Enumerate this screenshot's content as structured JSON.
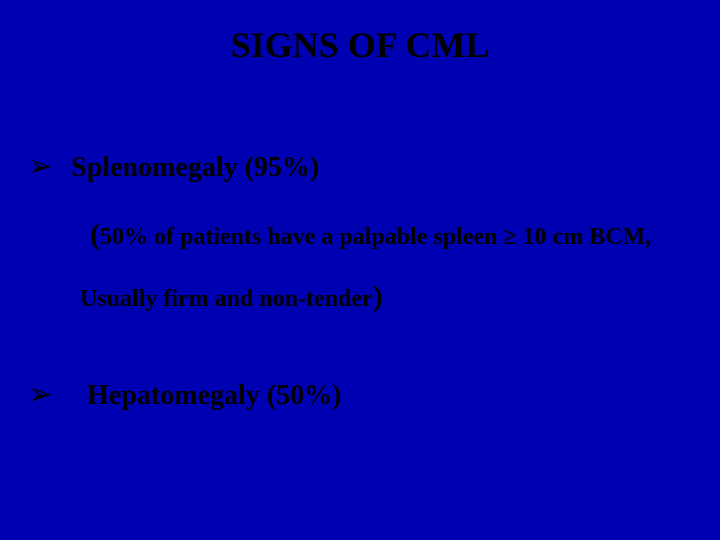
{
  "slide": {
    "background_color": "#0000b3",
    "text_color": "#000000",
    "font_family": "Times New Roman",
    "title": {
      "text": "SIGNS OF CML",
      "font_size": 36,
      "font_weight": "bold"
    },
    "bullets": [
      {
        "marker": "➢",
        "text": "Splenomegaly (95%)",
        "font_size": 28,
        "sublines": [
          "50% of  patients have a palpable spleen ≥ 10 cm BCM,",
          "Usually firm and non-tender"
        ],
        "subline_font_size": 24
      },
      {
        "marker": "➢",
        "text": "Hepatomegaly (50%)",
        "font_size": 28
      }
    ]
  }
}
